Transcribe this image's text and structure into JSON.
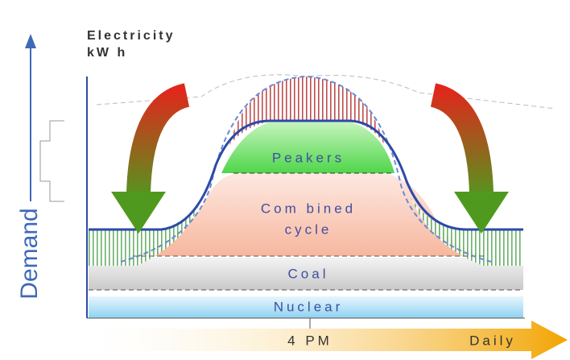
{
  "header": {
    "title_line1": "Electricity",
    "title_line2": "kW h"
  },
  "axis": {
    "y_label": "Demand",
    "x_label": "Daily",
    "x_marker": "4 PM"
  },
  "layers": [
    {
      "label": "Peakers"
    },
    {
      "label_line1": "Com bined",
      "label_line2": "cycle"
    },
    {
      "label": "Coal"
    },
    {
      "label": "Nuclear"
    }
  ]
}
